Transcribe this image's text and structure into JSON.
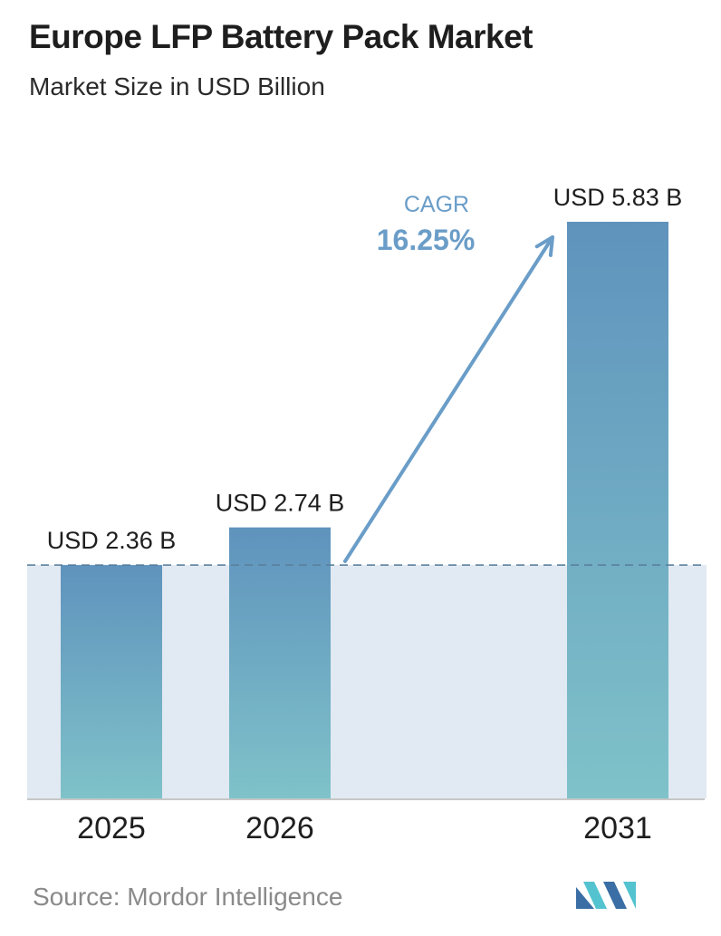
{
  "header": {
    "title": "Europe LFP Battery Pack Market",
    "subtitle": "Market Size in USD Billion"
  },
  "chart_data": {
    "type": "bar",
    "categories": [
      "2025",
      "2026",
      "2031"
    ],
    "values": [
      2.36,
      2.74,
      5.83
    ],
    "value_labels": [
      "USD 2.36 B",
      "USD 2.74 B",
      "USD 5.83 B"
    ],
    "title": "Europe LFP Battery Pack Market",
    "subtitle": "Market Size in USD Billion",
    "ylim": [
      0,
      6.38
    ],
    "grid": false,
    "reference_line_value": 2.36,
    "annotation": {
      "label": "CAGR",
      "value": "16.25%"
    },
    "colors": {
      "bar_top": "#5f93bd",
      "bar_bottom": "#7fc2c9",
      "band": "#e1e9f2",
      "arrow": "#6a9dc8",
      "reference_line": "#5a7f9c",
      "axis": "#c7c7c7"
    }
  },
  "footer": {
    "source": "Source:  Mordor Intelligence",
    "logo_icon": "mordor-intelligence-logo-icon"
  }
}
